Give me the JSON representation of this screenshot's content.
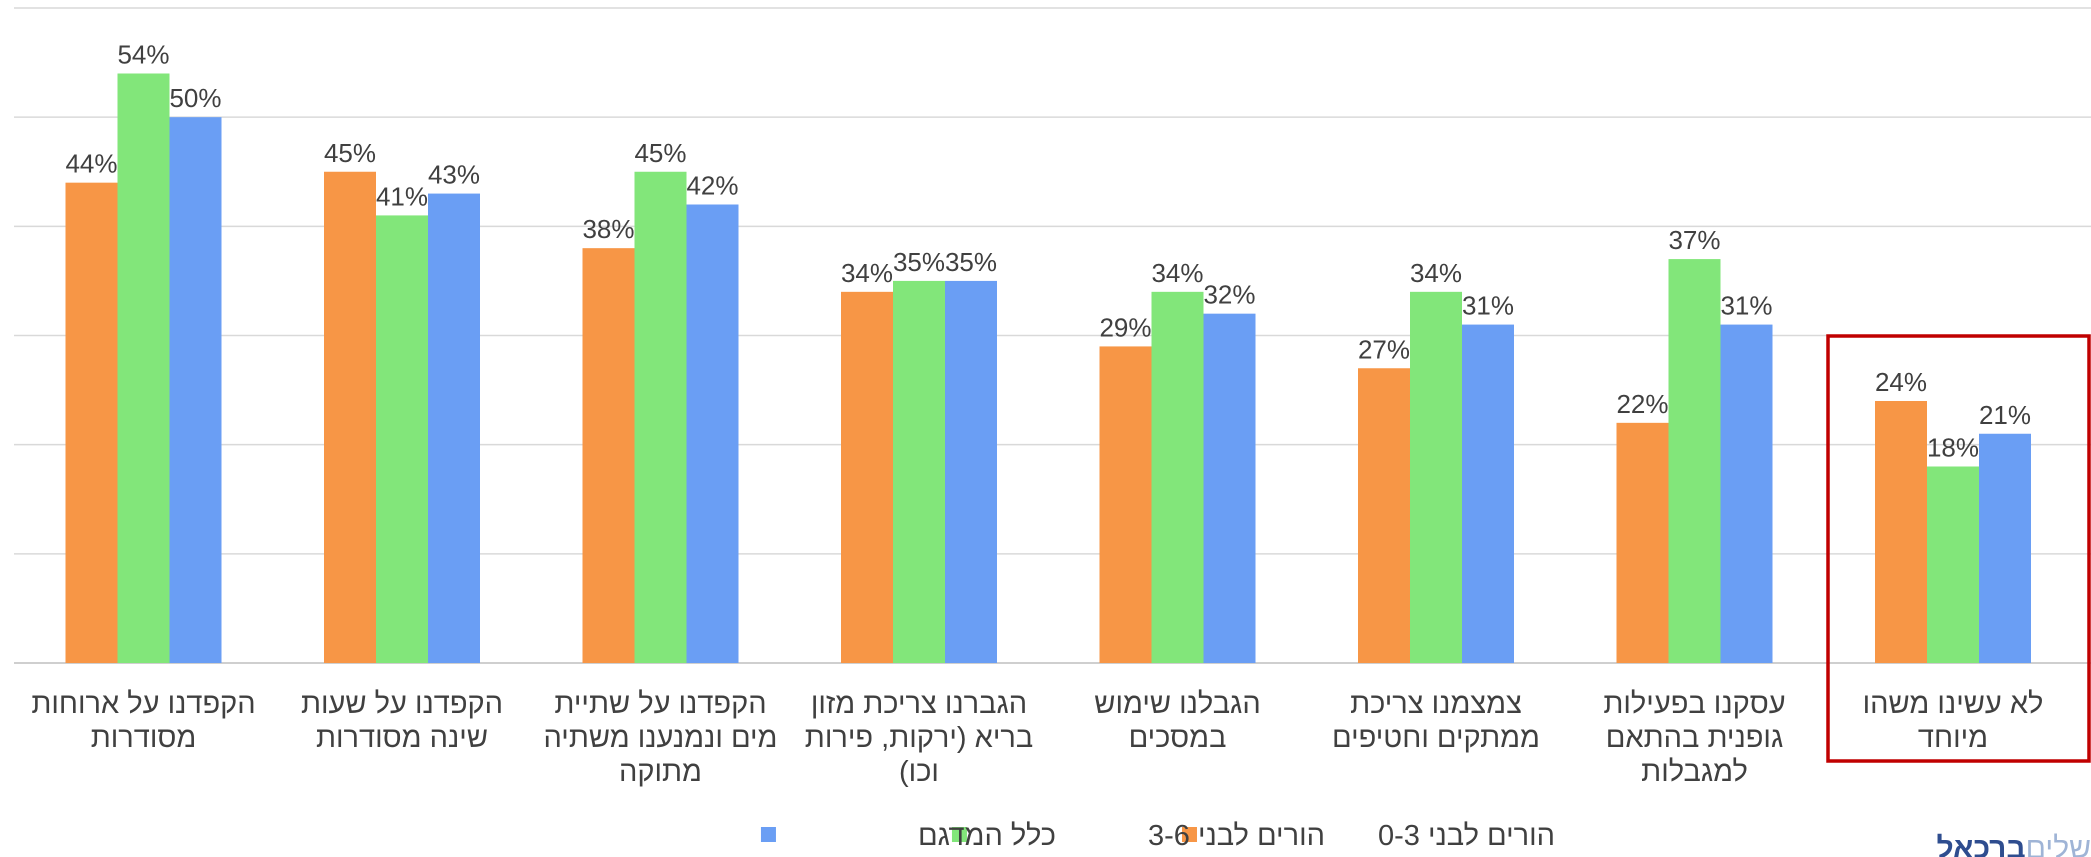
{
  "chart_data": {
    "type": "bar",
    "title": "",
    "xlabel": "",
    "ylabel": "",
    "ylim": [
      0,
      60
    ],
    "grid": true,
    "legend_position": "bottom",
    "categories": [
      [
        "הקפדנו על ארוחות",
        "מסודרות"
      ],
      [
        "הקפדנו על שעות",
        "שינה מסודרות"
      ],
      [
        "הקפדנו על שתיית",
        "מים ונמנענו משתיה",
        "מתוקה"
      ],
      [
        "הגברנו צריכת מזון",
        "בריא (ירקות, פירות",
        "וכו)"
      ],
      [
        "הגבלנו שימוש",
        "במסכים"
      ],
      [
        "צמצמנו צריכת",
        "ממתקים וחטיפים"
      ],
      [
        "עסקנו בפעילות",
        "גופנית בהתאם",
        "למגבלות"
      ],
      [
        "לא עשינו משהו",
        "מיוחד"
      ]
    ],
    "series": [
      {
        "name": "הורים לבני 0-3",
        "color": "#f79646",
        "values": [
          44,
          45,
          38,
          34,
          29,
          27,
          22,
          24
        ]
      },
      {
        "name": "הורים לבני 3-6",
        "color": "#82e67a",
        "values": [
          54,
          41,
          45,
          35,
          34,
          34,
          37,
          18
        ]
      },
      {
        "name": "כלל המדגם",
        "color": "#6a9ef4",
        "values": [
          50,
          43,
          42,
          35,
          32,
          31,
          31,
          21
        ]
      }
    ],
    "value_suffix": "%",
    "highlight_category_index": 7,
    "highlight_color": "#c00000"
  },
  "logo": {
    "part1": "שלים",
    "part2": "ברכאל"
  }
}
